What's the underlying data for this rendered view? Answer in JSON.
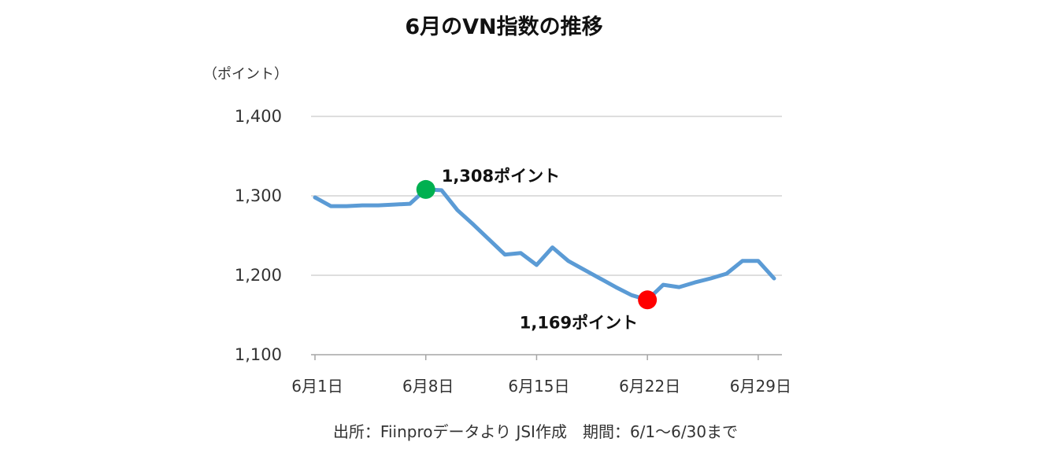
{
  "chart_data": {
    "type": "line",
    "title": "6月のVN指数の推移",
    "unit_label": "（ポイント）",
    "ylim": [
      1100,
      1400
    ],
    "yticks": [
      1400,
      1300,
      1200,
      1100
    ],
    "ytick_labels": [
      "1,400",
      "1,300",
      "1,200",
      "1,100"
    ],
    "xlim": [
      1,
      30
    ],
    "xticks": [
      1,
      8,
      15,
      22,
      29
    ],
    "xtick_labels": [
      "6月1日",
      "6月8日",
      "6月15日",
      "6月22日",
      "6月29日"
    ],
    "grid": true,
    "legend": "none",
    "series": [
      {
        "color": "#5b9bd5",
        "x": [
          1,
          2,
          3,
          4,
          5,
          6,
          7,
          8,
          9,
          10,
          11,
          12,
          13,
          14,
          15,
          16,
          17,
          18,
          19,
          20,
          21,
          22,
          23,
          24,
          25,
          26,
          27,
          28,
          29,
          30
        ],
        "y": [
          1298,
          1287,
          1287,
          1288,
          1288,
          1289,
          1290,
          1308,
          1307,
          1282,
          1264,
          1245,
          1226,
          1228,
          1213,
          1235,
          1218,
          1207,
          1196,
          1185,
          1175,
          1169,
          1188,
          1185,
          1191,
          1196,
          1202,
          1218,
          1218,
          1196
        ]
      }
    ],
    "annotations": [
      {
        "x": 8,
        "y": 1308,
        "color": "#00b050",
        "label": "1,308ポイント"
      },
      {
        "x": 22,
        "y": 1169,
        "color": "#ff0000",
        "label": "1,169ポイント"
      }
    ],
    "source": "出所：Fiinproデータより JSI作成　期間：6/1～6/30まで"
  }
}
